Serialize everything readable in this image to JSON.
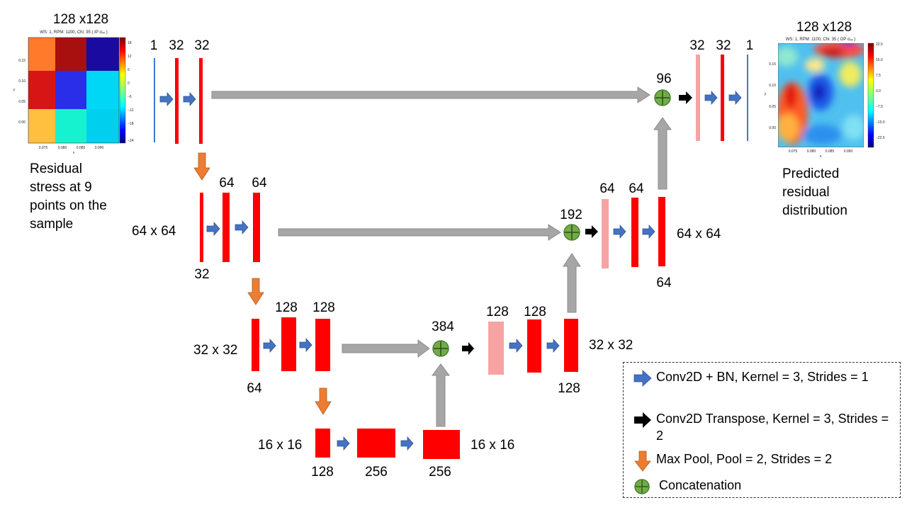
{
  "input_panel": {
    "size_label": "128 x128",
    "title": "WS: 1, RPM: 1100, Chi: 35 ( IP σₓₓ )",
    "y_ticks": [
      "0.15",
      "0.10",
      "0.05",
      "0.00"
    ],
    "x_ticks": [
      "0.075",
      "0.080",
      "0.085",
      "0.090"
    ],
    "x_axis": "x",
    "y_axis": "y",
    "colorbar_ticks": [
      "18",
      "12",
      "6",
      "0",
      "−6",
      "−12",
      "−18",
      "−24"
    ],
    "grid_colors": [
      [
        "#ff7a2a",
        "#a80f0f",
        "#1a0aa0"
      ],
      [
        "#d81515",
        "#2a2ee8",
        "#00d6f5"
      ],
      [
        "#ffc040",
        "#16f2d0",
        "#00d0ee"
      ]
    ],
    "caption": [
      "Residual",
      "stress at 9",
      "points on the",
      "sample"
    ]
  },
  "output_panel": {
    "size_label": "128 x128",
    "title": "WS: 1, RPM: 1100, Chi: 35 ( OP σₓₓ )",
    "y_ticks": [
      "0.15",
      "0.10",
      "0.05",
      "0.00"
    ],
    "x_ticks": [
      "0.075",
      "0.080",
      "0.085",
      "0.090"
    ],
    "x_axis": "x",
    "y_axis": "y",
    "colorbar_ticks": [
      "22.5",
      "15.0",
      "7.5",
      "0.0",
      "−7.5",
      "−15.0",
      "−22.5"
    ],
    "caption": [
      "Predicted",
      "residual",
      "distribution"
    ]
  },
  "channels": {
    "enc1_a": "1",
    "enc1_b": "32",
    "enc1_c": "32",
    "dec1_a": "32",
    "dec1_b": "32",
    "dec1_c": "1",
    "enc2_a": "32",
    "enc2_b": "64",
    "enc2_c": "64",
    "dec2_a": "64",
    "dec2_b": "64",
    "dec2_c": "64",
    "enc3_a": "64",
    "enc3_b": "128",
    "enc3_c": "128",
    "dec3_a": "128",
    "dec3_b": "128",
    "dec3_c": "128",
    "bot_a": "128",
    "bot_b": "256",
    "bot_c": "256",
    "concat1": "96",
    "concat2": "192",
    "concat3": "384"
  },
  "sizes": {
    "l2_left": "64 x 64",
    "l2_right": "64 x 64",
    "l3_left": "32 x 32",
    "l3_right": "32 x 32",
    "l4_left": "16 x 16",
    "l4_right": "16 x 16"
  },
  "legend": {
    "conv": "Conv2D + BN, Kernel = 3, Strides = 1",
    "transpose": "Conv2D Transpose, Kernel = 3, Strides = 2",
    "maxpool": "Max Pool, Pool = 2, Strides = 2",
    "concat": "Concatenation"
  },
  "colors": {
    "feature_map": "#ff0000",
    "upsampled_map": "#f7a3a3",
    "input_line": "#3c78d8",
    "skip_arrow": "#a6a6a6",
    "conv_arrow": "#4472c4",
    "pool_arrow": "#ed7d31",
    "concat_fill": "#70ad47"
  }
}
